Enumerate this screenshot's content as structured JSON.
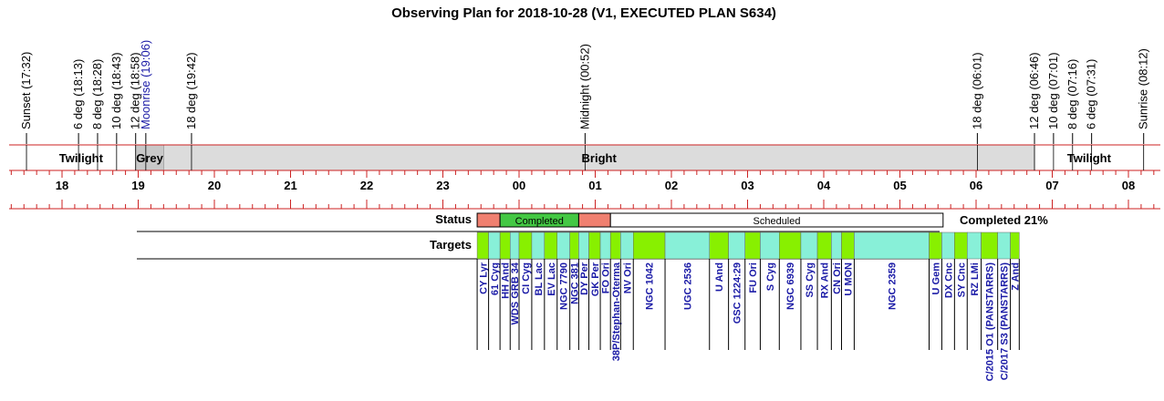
{
  "chart_data": {
    "type": "timeline",
    "title": "Observing Plan for 2018-10-28 (V1, EXECUTED PLAN S634)",
    "events": [
      {
        "label": "Sunset (17:32)",
        "time": "17:32",
        "color": "#000000"
      },
      {
        "label": "6 deg (18:13)",
        "time": "18:13",
        "color": "#000000"
      },
      {
        "label": "8 deg (18:28)",
        "time": "18:28",
        "color": "#000000"
      },
      {
        "label": "10 deg (18:43)",
        "time": "18:43",
        "color": "#000000"
      },
      {
        "label": "12 deg (18:58)",
        "time": "18:58",
        "color": "#000000"
      },
      {
        "label": "Moonrise (19:06)",
        "time": "19:06",
        "color": "#1a1aa6"
      },
      {
        "label": "18 deg (19:42)",
        "time": "19:42",
        "color": "#000000"
      },
      {
        "label": "Midnight (00:52)",
        "time": "00:52",
        "color": "#000000"
      },
      {
        "label": "18 deg (06:01)",
        "time": "06:01",
        "color": "#000000"
      },
      {
        "label": "12 deg (06:46)",
        "time": "06:46",
        "color": "#000000"
      },
      {
        "label": "10 deg (07:01)",
        "time": "07:01",
        "color": "#000000"
      },
      {
        "label": "8 deg (07:16)",
        "time": "07:16",
        "color": "#000000"
      },
      {
        "label": "6 deg (07:31)",
        "time": "07:31",
        "color": "#000000"
      },
      {
        "label": "Sunrise (08:12)",
        "time": "08:12",
        "color": "#000000"
      }
    ],
    "sky_bands": [
      {
        "label": "Twilight",
        "start": "17:32",
        "end": "18:58",
        "color": "#ffffff"
      },
      {
        "label": "Grey",
        "start": "18:58",
        "end": "19:20",
        "color": "#c8c8c8"
      },
      {
        "label": "Bright",
        "start": "19:20",
        "end": "06:46",
        "color": "#dcdcdc"
      },
      {
        "label": "Twilight",
        "start": "06:46",
        "end": "08:12",
        "color": "#ffffff"
      }
    ],
    "hour_ticks": [
      "18",
      "19",
      "20",
      "21",
      "22",
      "23",
      "00",
      "01",
      "02",
      "03",
      "04",
      "05",
      "06",
      "07",
      "08"
    ],
    "status_label": "Status",
    "status": [
      {
        "label": "",
        "start": "23:27",
        "end": "23:45",
        "color": "#f08070"
      },
      {
        "label": "Completed",
        "start": "23:45",
        "end": "00:47",
        "color": "#44c844"
      },
      {
        "label": "",
        "start": "00:47",
        "end": "01:12",
        "color": "#f08070"
      },
      {
        "label": "Scheduled",
        "start": "01:12",
        "end": "05:34",
        "color": "#ffffff"
      }
    ],
    "completed_text": "Completed 21%",
    "targets_label": "Targets",
    "targets": [
      {
        "name": "CY Lyr",
        "start": "23:27",
        "end": "23:36"
      },
      {
        "name": "61 Cyg",
        "start": "23:36",
        "end": "23:45"
      },
      {
        "name": "HH And",
        "start": "23:45",
        "end": "23:53"
      },
      {
        "name": "WDS GRB 34",
        "start": "23:53",
        "end": "24:00"
      },
      {
        "name": "CI Cyg",
        "start": "24:00",
        "end": "24:10"
      },
      {
        "name": "BL Lac",
        "start": "24:10",
        "end": "24:20"
      },
      {
        "name": "EV Lac",
        "start": "24:20",
        "end": "24:30"
      },
      {
        "name": "NGC 7790",
        "start": "24:30",
        "end": "24:40"
      },
      {
        "name": "NGC 381",
        "start": "24:40",
        "end": "24:47"
      },
      {
        "name": "DY Per",
        "start": "24:47",
        "end": "24:55"
      },
      {
        "name": "GK Per",
        "start": "24:55",
        "end": "25:04"
      },
      {
        "name": "FO Ori",
        "start": "25:04",
        "end": "25:12"
      },
      {
        "name": "38P/Stephan-Oterma",
        "start": "25:12",
        "end": "25:20"
      },
      {
        "name": "NV Ori",
        "start": "25:20",
        "end": "25:30"
      },
      {
        "name": "NGC 1042",
        "start": "25:30",
        "end": "25:55"
      },
      {
        "name": "UGC 2536",
        "start": "25:55",
        "end": "26:30"
      },
      {
        "name": "U And",
        "start": "26:30",
        "end": "26:45"
      },
      {
        "name": "GSC 1224:29",
        "start": "26:45",
        "end": "26:58"
      },
      {
        "name": "FU Ori",
        "start": "26:58",
        "end": "27:10"
      },
      {
        "name": "S Cyg",
        "start": "27:10",
        "end": "27:25"
      },
      {
        "name": "NGC 6939",
        "start": "27:25",
        "end": "27:42"
      },
      {
        "name": "SS Cyg",
        "start": "27:42",
        "end": "27:55"
      },
      {
        "name": "RX And",
        "start": "27:55",
        "end": "28:06"
      },
      {
        "name": "CN Ori",
        "start": "28:06",
        "end": "28:14"
      },
      {
        "name": "U MON",
        "start": "28:14",
        "end": "28:24"
      },
      {
        "name": "NGC 2359",
        "start": "28:24",
        "end": "29:23"
      },
      {
        "name": "U Gem",
        "start": "29:23",
        "end": "29:33"
      },
      {
        "name": "DX Cnc",
        "start": "29:33",
        "end": "29:43"
      },
      {
        "name": "SY Cnc",
        "start": "29:43",
        "end": "29:53"
      },
      {
        "name": "RZ LMi",
        "start": "29:53",
        "end": "30:04"
      },
      {
        "name": "C/2015 O1 (PANSTARRS)",
        "start": "30:04",
        "end": "30:17"
      },
      {
        "name": "C/2017 S3 (PANSTARRS)",
        "start": "30:17",
        "end": "30:27"
      },
      {
        "name": "Z And",
        "start": "30:27",
        "end": "30:34"
      }
    ],
    "colors": {
      "target_a": "#88f000",
      "target_b": "#88f0d8",
      "red_line": "#cc2222",
      "target_text": "#1a1aa6"
    }
  }
}
